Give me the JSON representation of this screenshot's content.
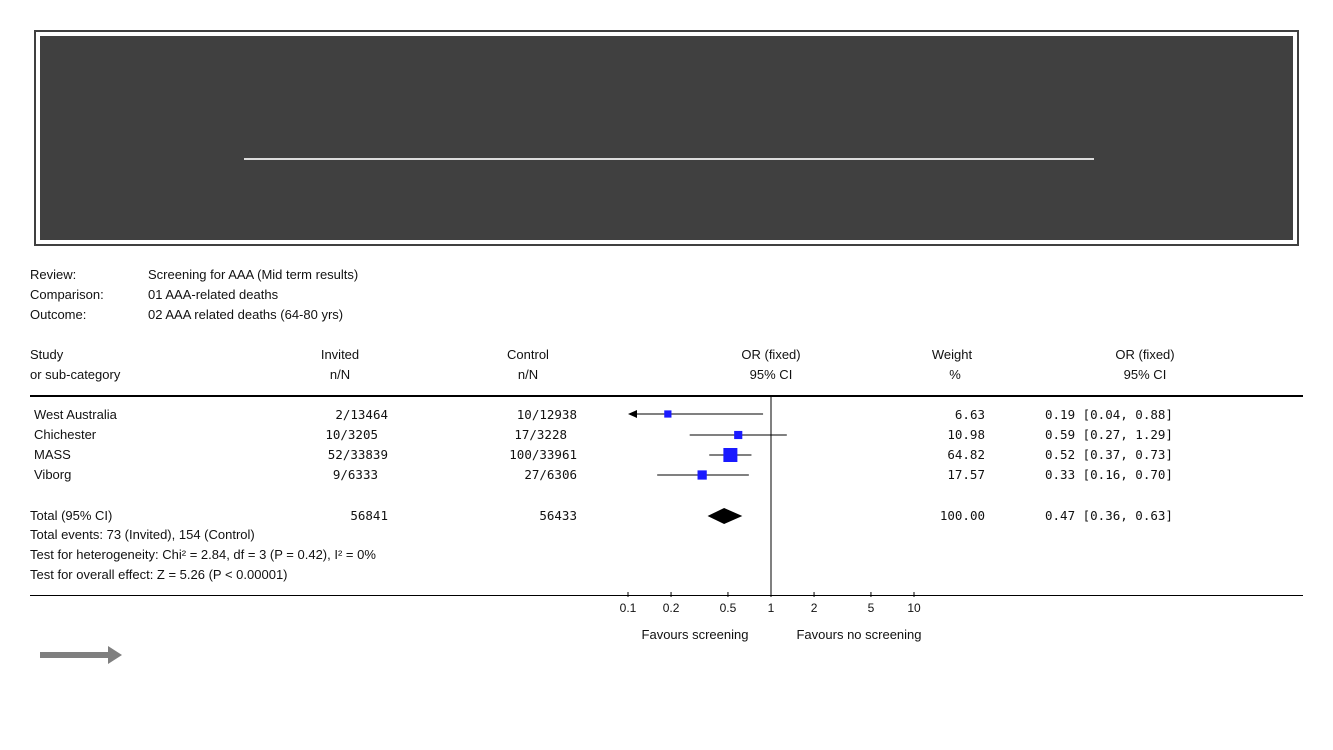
{
  "review": {
    "labels": {
      "review": "Review:",
      "comparison": "Comparison:",
      "outcome": "Outcome:"
    },
    "values": {
      "review": "Screening for AAA (Mid term results)",
      "comparison": "01 AAA-related deaths",
      "outcome": "02 AAA related deaths (64-80 yrs)"
    }
  },
  "headers": {
    "study_1": "Study",
    "study_2": "or sub-category",
    "invited_1": "Invited",
    "invited_2": "n/N",
    "control_1": "Control",
    "control_2": "n/N",
    "or_1": "OR (fixed)",
    "or_2": "95% CI",
    "weight_1": "Weight",
    "weight_2": "%",
    "orval_1": "OR (fixed)",
    "orval_2": "95% CI"
  },
  "studies": [
    {
      "name": "West Australia",
      "invited": "2/13464",
      "control": "10/12938",
      "weight": "6.63",
      "or_text": "0.19 [0.04, 0.88]"
    },
    {
      "name": "Chichester",
      "invited": "10/3205",
      "control": "17/3228",
      "weight": "10.98",
      "or_text": "0.59 [0.27, 1.29]"
    },
    {
      "name": "MASS",
      "invited": "52/33839",
      "control": "100/33961",
      "weight": "64.82",
      "or_text": "0.52 [0.37, 0.73]"
    },
    {
      "name": "Viborg",
      "invited": "9/6333",
      "control": "27/6306",
      "weight": "17.57",
      "or_text": "0.33 [0.16, 0.70]"
    }
  ],
  "total": {
    "label": "Total (95% CI)",
    "invited": "56841",
    "control": "56433",
    "weight": "100.00",
    "or_text": "0.47 [0.36, 0.63]",
    "events": "Total events: 73 (Invited), 154 (Control)",
    "heterogeneity": "Test for heterogeneity: Chi² = 2.84, df = 3 (P = 0.42), I² = 0%",
    "overall": "Test for overall effect: Z = 5.26 (P < 0.00001)"
  },
  "chart_data": {
    "type": "forest",
    "scale": "log",
    "xlim": [
      0.1,
      10
    ],
    "ticks": [
      0.1,
      0.2,
      0.5,
      1,
      2,
      5,
      10
    ],
    "tick_labels": [
      "0.1",
      "0.2",
      "0.5",
      "1",
      "2",
      "5",
      "10"
    ],
    "xlabel_left": "Favours screening",
    "xlabel_right": "Favours no screening",
    "reference_line": 1,
    "studies": [
      {
        "name": "West Australia",
        "or": 0.19,
        "lo": 0.04,
        "hi": 0.88,
        "weight": 6.63
      },
      {
        "name": "Chichester",
        "or": 0.59,
        "lo": 0.27,
        "hi": 1.29,
        "weight": 10.98
      },
      {
        "name": "MASS",
        "or": 0.52,
        "lo": 0.37,
        "hi": 0.73,
        "weight": 64.82
      },
      {
        "name": "Viborg",
        "or": 0.33,
        "lo": 0.16,
        "hi": 0.7,
        "weight": 17.57
      }
    ],
    "pooled": {
      "or": 0.47,
      "lo": 0.36,
      "hi": 0.63
    },
    "colors": {
      "marker": "#1a1aff",
      "pooled": "#000000",
      "line": "#000000"
    }
  },
  "nav": {
    "arrow_icon": "right-arrow-icon",
    "arrow_color": "#7f7f7f"
  }
}
